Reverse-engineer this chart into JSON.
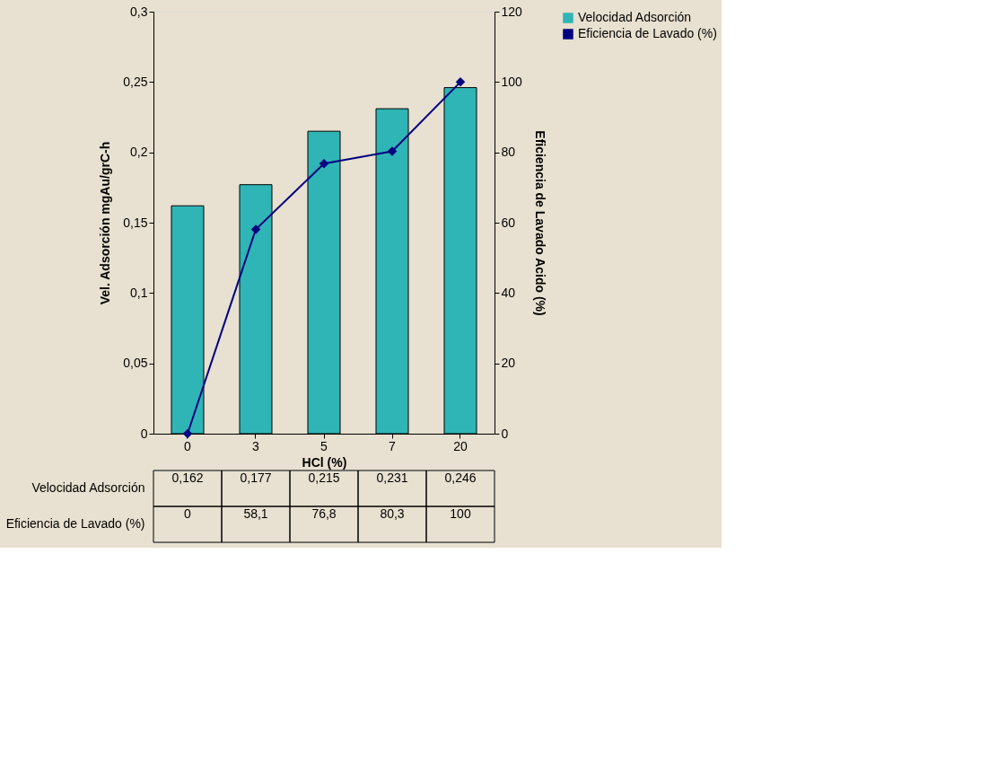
{
  "chart_data": {
    "type": "bar",
    "xlabel": "HCl (%)",
    "ylabel": "Vel. Adsorción mgAu/grC-h",
    "y2label": "Eficiencia de Lavado Acido (%)",
    "categories": [
      "0",
      "3",
      "5",
      "7",
      "20"
    ],
    "series": [
      {
        "name": "Velocidad Adsorción",
        "color": "#2fb5b5",
        "values": [
          0.162,
          0.177,
          0.215,
          0.231,
          0.246
        ],
        "value_labels": [
          "0,162",
          "0,177",
          "0,215",
          "0,231",
          "0,246"
        ]
      },
      {
        "name": "Eficiencia de Lavado (%)",
        "type": "line",
        "axis": "y2",
        "color": "#000080",
        "marker": "diamond",
        "line_style": "solid",
        "values": [
          0,
          58.1,
          76.8,
          80.3,
          100
        ],
        "value_labels": [
          "0",
          "58,1",
          "76,8",
          "80,3",
          "100"
        ]
      }
    ],
    "ylim": [
      0,
      0.3
    ],
    "yticks": [
      0,
      {
        "value": 0.05,
        "label": "0,05"
      },
      {
        "value": 0.1,
        "label": "0,1"
      },
      {
        "value": 0.15,
        "label": "0,15"
      },
      {
        "value": 0.2,
        "label": "0,2"
      },
      {
        "value": 0.25,
        "label": "0,25"
      },
      {
        "value": 0.3,
        "label": "0,3"
      }
    ],
    "y2lim": [
      0,
      120
    ],
    "y2ticks": [
      0,
      20,
      40,
      60,
      80,
      100,
      120
    ],
    "grid": false,
    "legend": "right"
  }
}
